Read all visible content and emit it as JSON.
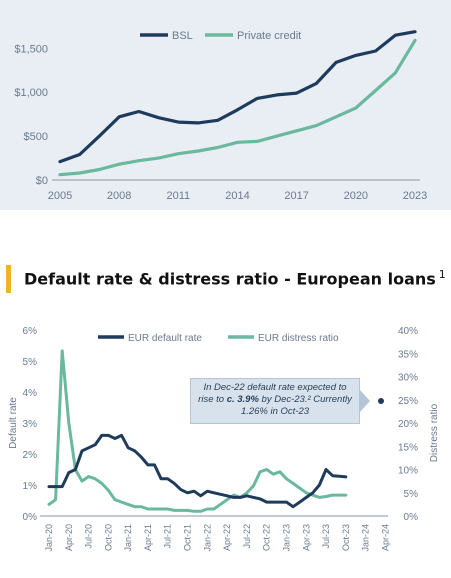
{
  "colors": {
    "navy": "#1f3b5c",
    "teal": "#6ab89e",
    "accent": "#f0b323",
    "axis": "#6b7a8f"
  },
  "heading": {
    "title": "Default rate & distress ratio - European loans",
    "footnote": "1"
  },
  "callout": {
    "line1": "In Dec-22 default rate expected to",
    "line2_pre": "rise to ",
    "line2_bold": "c. 3.9%",
    "line2_post": " by Dec-23.² Currently",
    "line3": "1.26% in Oct-23"
  },
  "chart_data": [
    {
      "type": "line",
      "legend_position": "top-center",
      "grid": false,
      "xlim": [
        2005,
        2023
      ],
      "x_ticks": [
        2005,
        2008,
        2011,
        2014,
        2017,
        2020,
        2023
      ],
      "ylim": [
        0,
        1800
      ],
      "y_ticks": [
        0,
        500,
        1000,
        1500
      ],
      "y_tick_labels": [
        "$0",
        "$500",
        "$1,000",
        "$1,500"
      ],
      "x": [
        2005,
        2006,
        2007,
        2008,
        2009,
        2010,
        2011,
        2012,
        2013,
        2014,
        2015,
        2016,
        2017,
        2018,
        2019,
        2020,
        2021,
        2022,
        2023
      ],
      "series": [
        {
          "name": "BSL",
          "color": "#1f3b5c",
          "values": [
            210,
            290,
            500,
            720,
            780,
            710,
            660,
            650,
            680,
            800,
            930,
            970,
            990,
            1100,
            1340,
            1420,
            1470,
            1650,
            1690
          ]
        },
        {
          "name": "Private credit",
          "color": "#6ab89e",
          "values": [
            60,
            80,
            120,
            180,
            220,
            250,
            300,
            330,
            370,
            430,
            440,
            500,
            560,
            620,
            720,
            820,
            1020,
            1220,
            1590
          ]
        }
      ]
    },
    {
      "type": "line",
      "legend_position": "top-center",
      "grid": false,
      "ylabel": "Default rate",
      "y2label": "Distress ratio",
      "ylim": [
        0,
        6
      ],
      "y_ticks": [
        0,
        1,
        2,
        3,
        4,
        5,
        6
      ],
      "y_tick_labels": [
        "0%",
        "1%",
        "2%",
        "3%",
        "4%",
        "5%",
        "6%"
      ],
      "y2lim": [
        0,
        40
      ],
      "y2_ticks": [
        0,
        5,
        10,
        15,
        20,
        25,
        30,
        35,
        40
      ],
      "y2_tick_labels": [
        "0%",
        "5%",
        "10%",
        "15%",
        "20%",
        "25%",
        "30%",
        "35%",
        "40%"
      ],
      "x_ticks": [
        "Jan-20",
        "Apr-20",
        "Jul-20",
        "Oct-20",
        "Jan-21",
        "Apr-21",
        "Jul-21",
        "Oct-21",
        "Jan-22",
        "Apr-22",
        "Jul-22",
        "Oct-22",
        "Jan-23",
        "Apr-23",
        "Jul-23",
        "Oct-23",
        "Jan-24",
        "Apr-24"
      ],
      "series": [
        {
          "name": "EUR default rate",
          "axis": "left",
          "color": "#1f3b5c",
          "x": [
            "Jan-20",
            "Feb-20",
            "Mar-20",
            "Apr-20",
            "May-20",
            "Jun-20",
            "Jul-20",
            "Aug-20",
            "Sep-20",
            "Oct-20",
            "Nov-20",
            "Dec-20",
            "Jan-21",
            "Feb-21",
            "Mar-21",
            "Apr-21",
            "May-21",
            "Jun-21",
            "Jul-21",
            "Aug-21",
            "Sep-21",
            "Oct-21",
            "Nov-21",
            "Dec-21",
            "Jan-22",
            "Feb-22",
            "Mar-22",
            "Apr-22",
            "May-22",
            "Jun-22",
            "Jul-22",
            "Aug-22",
            "Sep-22",
            "Oct-22",
            "Nov-22",
            "Dec-22",
            "Jan-23",
            "Feb-23",
            "Mar-23",
            "Apr-23",
            "May-23",
            "Jun-23",
            "Jul-23",
            "Aug-23",
            "Sep-23",
            "Oct-23"
          ],
          "values": [
            0.95,
            0.95,
            0.95,
            1.4,
            1.5,
            2.1,
            2.2,
            2.3,
            2.6,
            2.6,
            2.5,
            2.6,
            2.2,
            2.1,
            1.9,
            1.65,
            1.65,
            1.2,
            1.2,
            1.05,
            0.85,
            0.75,
            0.8,
            0.65,
            0.8,
            0.75,
            0.7,
            0.65,
            0.6,
            0.6,
            0.65,
            0.6,
            0.55,
            0.45,
            0.45,
            0.45,
            0.45,
            0.3,
            0.45,
            0.6,
            0.75,
            1.0,
            1.5,
            1.3,
            1.28,
            1.26
          ]
        },
        {
          "name": "EUR distress ratio",
          "axis": "right",
          "color": "#6ab89e",
          "x": [
            "Jan-20",
            "Feb-20",
            "Mar-20",
            "Apr-20",
            "May-20",
            "Jun-20",
            "Jul-20",
            "Aug-20",
            "Sep-20",
            "Oct-20",
            "Nov-20",
            "Dec-20",
            "Jan-21",
            "Feb-21",
            "Mar-21",
            "Apr-21",
            "May-21",
            "Jun-21",
            "Jul-21",
            "Aug-21",
            "Sep-21",
            "Oct-21",
            "Nov-21",
            "Dec-21",
            "Jan-22",
            "Feb-22",
            "Mar-22",
            "Apr-22",
            "May-22",
            "Jun-22",
            "Jul-22",
            "Aug-22",
            "Sep-22",
            "Oct-22",
            "Nov-22",
            "Dec-22",
            "Jan-23",
            "Feb-23",
            "Mar-23",
            "Apr-23",
            "May-23",
            "Jun-23",
            "Jul-23",
            "Aug-23",
            "Sep-23",
            "Oct-23"
          ],
          "values": [
            2.5,
            3.5,
            35.5,
            20,
            10,
            7.5,
            8.5,
            8,
            7,
            5.5,
            3.5,
            3,
            2.5,
            2,
            2,
            1.5,
            1.5,
            1.5,
            1.5,
            1.2,
            1.2,
            1.2,
            1,
            1,
            1.5,
            1.5,
            2.5,
            3.5,
            4.5,
            4,
            5,
            6.5,
            9.5,
            10,
            9,
            9.5,
            8,
            7,
            6,
            5,
            4.5,
            4,
            4.2,
            4.5,
            4.5,
            4.5
          ]
        }
      ]
    }
  ]
}
